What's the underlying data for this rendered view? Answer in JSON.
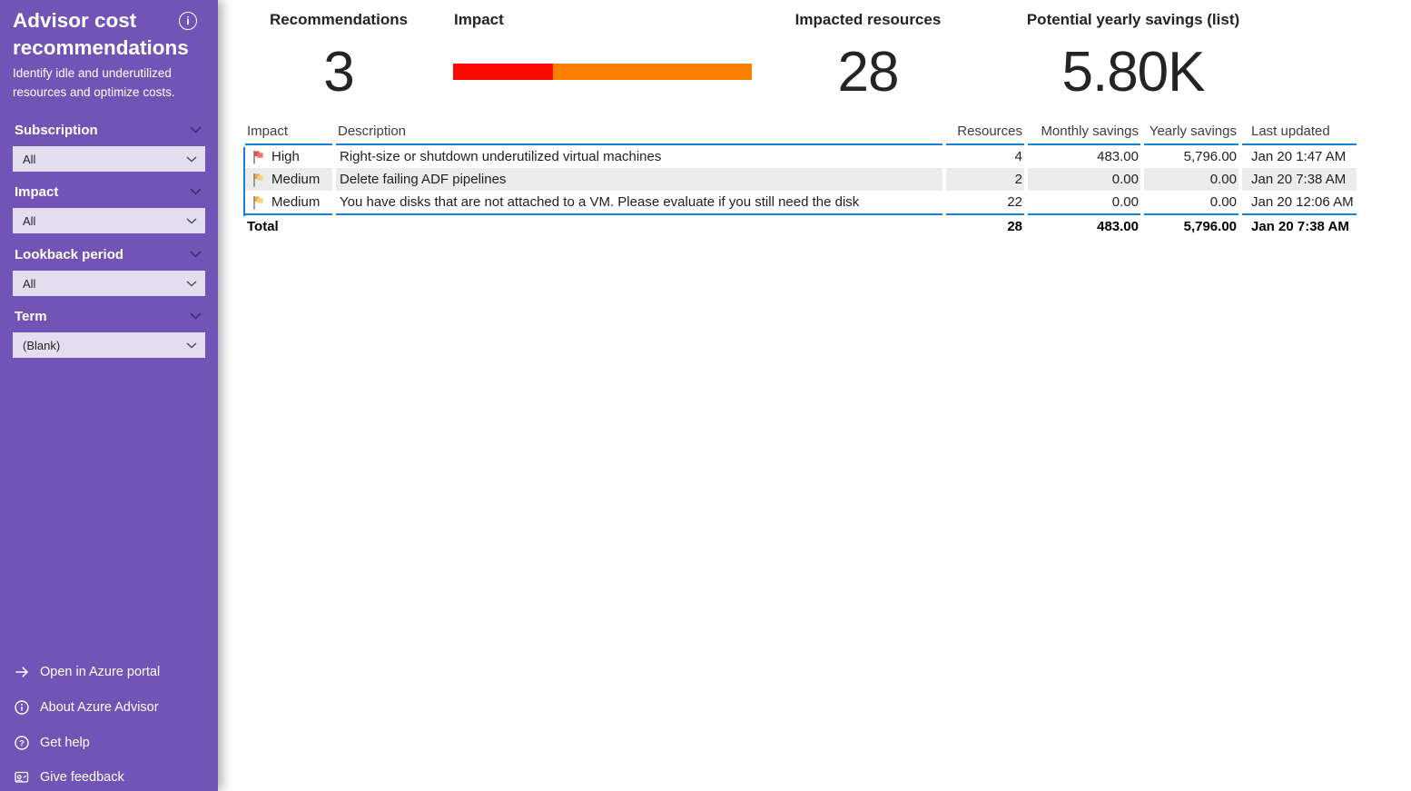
{
  "sidebar": {
    "title": "Advisor cost recommendations",
    "subtitle": "Identify idle and underutilized resources and optimize costs.",
    "filters": [
      {
        "label": "Subscription",
        "value": "All"
      },
      {
        "label": "Impact",
        "value": "All"
      },
      {
        "label": "Lookback period",
        "value": "All"
      },
      {
        "label": "Term",
        "value": "(Blank)"
      }
    ],
    "links": [
      {
        "icon": "arrow-right-icon",
        "label": "Open in Azure portal"
      },
      {
        "icon": "info-icon",
        "label": "About Azure Advisor"
      },
      {
        "icon": "help-icon",
        "label": "Get help"
      },
      {
        "icon": "feedback-icon",
        "label": "Give feedback"
      }
    ]
  },
  "kpis": {
    "recommendations": {
      "label": "Recommendations",
      "value": "3"
    },
    "impact": {
      "label": "Impact",
      "segments": [
        {
          "name": "High",
          "count": 1,
          "width": "33.5%",
          "color": "#FA0A00"
        },
        {
          "name": "Medium",
          "count": 2,
          "width": "66.5%",
          "color": "#FB7E01"
        }
      ]
    },
    "impacted_resources": {
      "label": "Impacted resources",
      "value": "28"
    },
    "potential_yearly_savings": {
      "label": "Potential yearly savings (list)",
      "value": "5.80K"
    }
  },
  "table": {
    "columns": {
      "impact": "Impact",
      "description": "Description",
      "resources": "Resources",
      "monthly": "Monthly savings",
      "yearly": "Yearly savings",
      "updated": "Last updated"
    },
    "rows": [
      {
        "impact": "High",
        "flag": {
          "back": "#E84C3F",
          "front": "#F4745E"
        },
        "description": "Right-size or shutdown underutilized virtual machines",
        "resources": "4",
        "monthly": "483.00",
        "yearly": "5,796.00",
        "updated": "Jan 20 1:47 AM"
      },
      {
        "impact": "Medium",
        "flag": {
          "back": "#F0A93E",
          "front": "#F9CF87"
        },
        "description": "Delete failing ADF pipelines",
        "resources": "2",
        "monthly": "0.00",
        "yearly": "0.00",
        "updated": "Jan 20 7:38 AM"
      },
      {
        "impact": "Medium",
        "flag": {
          "back": "#F0A93E",
          "front": "#F9CF87"
        },
        "description": "You have disks that are not attached to a VM. Please evaluate if you still need the disk",
        "resources": "22",
        "monthly": "0.00",
        "yearly": "0.00",
        "updated": "Jan 20 12:06 AM"
      }
    ],
    "total": {
      "label": "Total",
      "resources": "28",
      "monthly": "483.00",
      "yearly": "5,796.00",
      "updated": "Jan 20 7:38 AM"
    }
  },
  "colors": {
    "sidebar_background": "#7254B6",
    "dropdown_background": "#E3DEEF",
    "table_accent_line": "#1283DA",
    "row_alternate": "#ECECEC",
    "impact_high": "#FA0A00",
    "impact_medium": "#FB7E01"
  }
}
